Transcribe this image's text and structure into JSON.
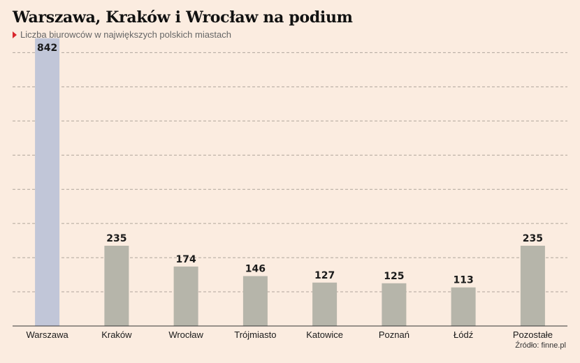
{
  "header": {
    "title": "Warszawa, Kraków i Wrocław na podium",
    "subtitle": "Liczba biurowców w największych polskich miastach"
  },
  "footer": {
    "source": "Źródło: finne.pl"
  },
  "colors": {
    "background": "#fbece0",
    "highlight": "#c1c6d8",
    "bar": "#b6b5aa",
    "accent": "#d9262c"
  },
  "chart_data": {
    "type": "bar",
    "title": "Warszawa, Kraków i Wrocław na podium",
    "subtitle": "Liczba biurowców w największych polskich miastach",
    "categories": [
      "Warszawa",
      "Kraków",
      "Wrocław",
      "Trójmiasto",
      "Katowice",
      "Poznań",
      "Łódź",
      "Pozostałe"
    ],
    "values": [
      842,
      235,
      174,
      146,
      127,
      125,
      113,
      235
    ],
    "highlight_index": 0,
    "ylim": [
      0,
      1000
    ],
    "grid": true,
    "xlabel": "",
    "ylabel": ""
  }
}
